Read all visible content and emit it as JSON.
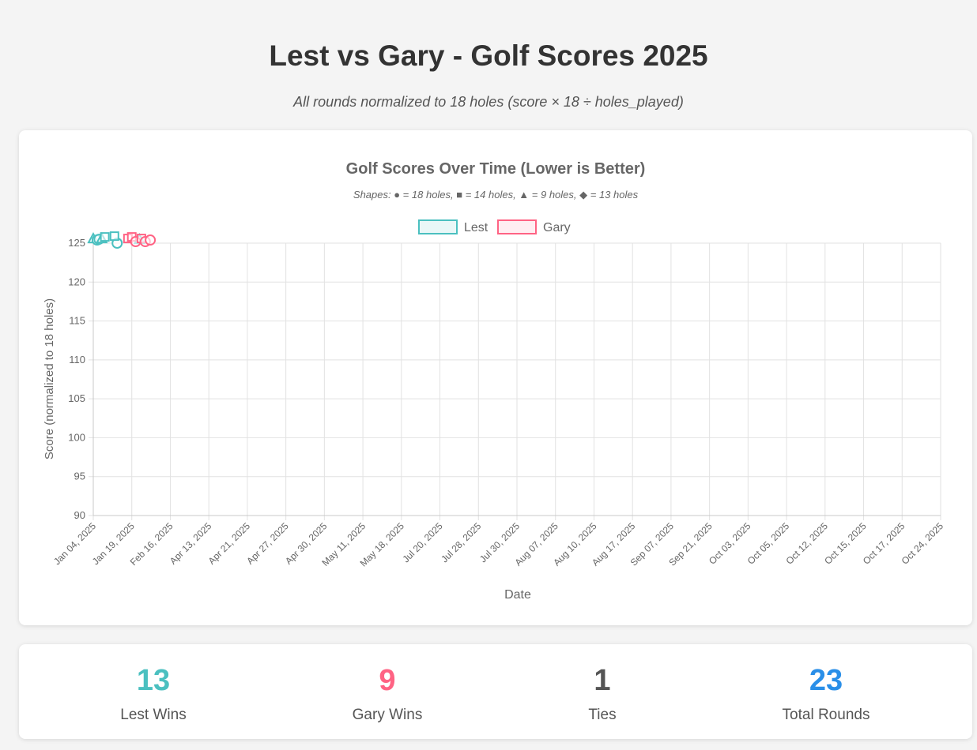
{
  "header": {
    "title": "Lest vs Gary - Golf Scores 2025",
    "subtitle": "All rounds normalized to 18 holes (score × 18 ÷ holes_played)"
  },
  "chart_data": {
    "type": "scatter",
    "title": "Golf Scores Over Time (Lower is Better)",
    "subtitle": "Shapes: ● = 18 holes, ■ = 14 holes, ▲ = 9 holes, ◆ = 13 holes",
    "xlabel": "Date",
    "ylabel": "Score (normalized to 18 holes)",
    "ylim": [
      90,
      125
    ],
    "yticks": [
      125,
      120,
      115,
      110,
      105,
      100,
      95,
      90
    ],
    "categories": [
      "Jan 04, 2025",
      "Jan 19, 2025",
      "Feb 16, 2025",
      "Apr 13, 2025",
      "Apr 21, 2025",
      "Apr 27, 2025",
      "Apr 30, 2025",
      "May 11, 2025",
      "May 18, 2025",
      "Jul 20, 2025",
      "Jul 28, 2025",
      "Jul 30, 2025",
      "Aug 07, 2025",
      "Aug 10, 2025",
      "Aug 17, 2025",
      "Sep 07, 2025",
      "Sep 21, 2025",
      "Oct 03, 2025",
      "Oct 05, 2025",
      "Oct 12, 2025",
      "Oct 15, 2025",
      "Oct 17, 2025",
      "Oct 24, 2025"
    ],
    "legend": "top",
    "series": [
      {
        "name": "Lest",
        "color": "#4bc0c0",
        "fill": "#e9f7f7",
        "points": [
          {
            "x": 0.0,
            "y": 125.6,
            "shape": "triangle"
          },
          {
            "x": 0.1,
            "y": 125.4,
            "shape": "circle"
          },
          {
            "x": 0.15,
            "y": 125.5,
            "shape": "circle"
          },
          {
            "x": 0.22,
            "y": 125.6,
            "shape": "triangle"
          },
          {
            "x": 0.3,
            "y": 125.8,
            "shape": "rect"
          },
          {
            "x": 0.62,
            "y": 125.0,
            "shape": "circle"
          },
          {
            "x": 0.55,
            "y": 125.9,
            "shape": "rect"
          },
          {
            "x": 1.2,
            "y": 125.5,
            "shape": "triangle"
          }
        ]
      },
      {
        "name": "Gary",
        "color": "#ff6384",
        "fill": "#ffeef2",
        "points": [
          {
            "x": 0.9,
            "y": 125.6,
            "shape": "rect"
          },
          {
            "x": 1.0,
            "y": 125.8,
            "shape": "rect"
          },
          {
            "x": 1.1,
            "y": 125.2,
            "shape": "circle"
          },
          {
            "x": 1.25,
            "y": 125.6,
            "shape": "rect"
          },
          {
            "x": 1.35,
            "y": 125.2,
            "shape": "circle"
          },
          {
            "x": 1.48,
            "y": 125.4,
            "shape": "circle"
          }
        ]
      }
    ]
  },
  "stats": [
    {
      "label": "Lest Wins",
      "value": "13",
      "color": "#4bc0c0"
    },
    {
      "label": "Gary Wins",
      "value": "9",
      "color": "#ff6384"
    },
    {
      "label": "Ties",
      "value": "1",
      "color": "#555555"
    },
    {
      "label": "Total Rounds",
      "value": "23",
      "color": "#2a8fe8"
    }
  ]
}
